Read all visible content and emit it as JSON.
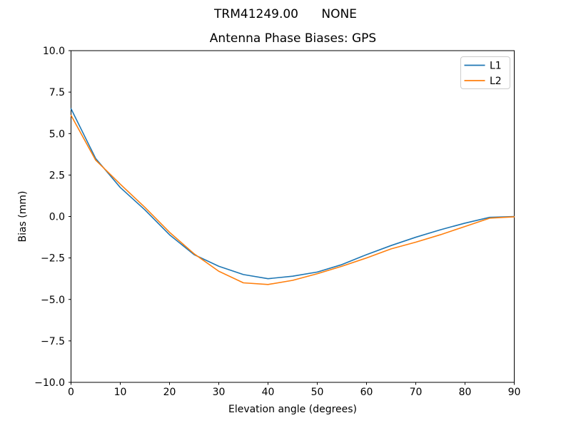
{
  "figure": {
    "suptitle": "TRM41249.00      NONE"
  },
  "chart_data": {
    "type": "line",
    "title": "Antenna Phase Biases: GPS",
    "xlabel": "Elevation angle (degrees)",
    "ylabel": "Bias (mm)",
    "xlim": [
      0,
      90
    ],
    "ylim": [
      -10,
      10
    ],
    "grid": false,
    "xticks": [
      0,
      10,
      20,
      30,
      40,
      50,
      60,
      70,
      80,
      90
    ],
    "xtick_labels": [
      "0",
      "10",
      "20",
      "30",
      "40",
      "50",
      "60",
      "70",
      "80",
      "90"
    ],
    "yticks": [
      -10,
      -7.5,
      -5,
      -2.5,
      0,
      2.5,
      5,
      7.5,
      10
    ],
    "ytick_labels": [
      "−10.0",
      "−7.5",
      "−5.0",
      "−2.5",
      "0.0",
      "2.5",
      "5.0",
      "7.5",
      "10.0"
    ],
    "x": [
      0,
      5,
      10,
      15,
      20,
      25,
      30,
      35,
      40,
      45,
      50,
      55,
      60,
      65,
      70,
      75,
      80,
      85,
      90
    ],
    "series": [
      {
        "name": "L1",
        "color": "#1f77b4",
        "values": [
          6.5,
          3.5,
          1.75,
          0.4,
          -1.1,
          -2.3,
          -3.0,
          -3.5,
          -3.75,
          -3.6,
          -3.35,
          -2.9,
          -2.3,
          -1.75,
          -1.25,
          -0.8,
          -0.4,
          -0.05,
          0.0
        ]
      },
      {
        "name": "L2",
        "color": "#ff7f0e",
        "values": [
          6.1,
          3.4,
          1.95,
          0.55,
          -0.95,
          -2.25,
          -3.3,
          -4.0,
          -4.1,
          -3.85,
          -3.45,
          -3.0,
          -2.5,
          -1.95,
          -1.55,
          -1.1,
          -0.6,
          -0.1,
          -0.02
        ]
      }
    ],
    "legend": {
      "position": "upper right",
      "entries": [
        {
          "label": "L1",
          "color": "#1f77b4"
        },
        {
          "label": "L2",
          "color": "#ff7f0e"
        }
      ]
    },
    "axis_color": "#000000",
    "legend_border_color": "#cccccc",
    "background_color": "#ffffff"
  }
}
